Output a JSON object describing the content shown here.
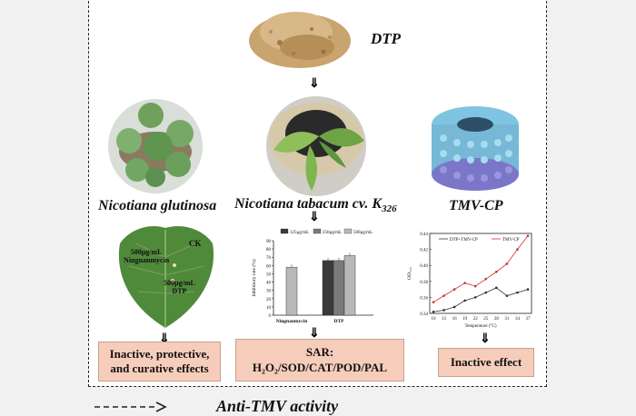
{
  "top_item": {
    "label": "DTP"
  },
  "plants": {
    "left": {
      "label": "Nicotiana glutinosa"
    },
    "middle": {
      "label": "Nicotiana tabacum cv. K",
      "sub": "326"
    },
    "right": {
      "label": "TMV-CP"
    }
  },
  "leaf": {
    "label_ck": "CK",
    "label_ning_1": "500µg/mL",
    "label_ning_2": "Ningnanmycin",
    "label_dtp_1": "500µg/mL",
    "label_dtp_2": "DTP"
  },
  "boxes": {
    "left_line1": "Inactive, protective,",
    "left_line2": "and curative effects",
    "middle_title": "SAR:",
    "middle_body": "H₂O₂/SOD/CAT/POD/PAL",
    "right": "Inactive effect"
  },
  "bottom_text": "Anti-TMV activity",
  "chart_data": [
    {
      "type": "bar",
      "categories": [
        "Ningnanmycin",
        "DTP"
      ],
      "series": [
        {
          "name": "125µg/mL",
          "values": [
            null,
            66
          ],
          "color": "#3a3a3a"
        },
        {
          "name": "250µg/mL",
          "values": [
            null,
            66
          ],
          "color": "#7a7a7a"
        },
        {
          "name": "500µg/mL",
          "values": [
            58,
            72
          ],
          "color": "#b8b8b8"
        }
      ],
      "ylabel": "Inhibitory rate (%)",
      "ylim": [
        0,
        90
      ],
      "yticks": [
        "0",
        "10",
        "20",
        "30",
        "40",
        "50",
        "60",
        "70",
        "80",
        "90"
      ],
      "legend": "top"
    },
    {
      "type": "line",
      "x": [
        10,
        13,
        16,
        19,
        22,
        25,
        28,
        31,
        34,
        37
      ],
      "series": [
        {
          "name": "DTP+TMV-CP",
          "values": [
            0.342,
            0.344,
            0.348,
            0.356,
            0.36,
            0.366,
            0.372,
            0.362,
            0.366,
            0.37
          ],
          "color": "#333333"
        },
        {
          "name": "TMV-CP",
          "values": [
            0.354,
            0.362,
            0.37,
            0.378,
            0.374,
            0.383,
            0.392,
            0.402,
            0.42,
            0.437
          ],
          "color": "#d23030"
        }
      ],
      "xlabel": "Temperature (°C)",
      "ylabel": "OD₃₃₀",
      "ylim": [
        0.34,
        0.44
      ],
      "yticks": [
        "0.34",
        "0.36",
        "0.38",
        "0.40",
        "0.42",
        "0.44"
      ],
      "xticks": [
        "10",
        "13",
        "16",
        "19",
        "22",
        "25",
        "28",
        "31",
        "34",
        "37"
      ],
      "legend": "top"
    }
  ]
}
